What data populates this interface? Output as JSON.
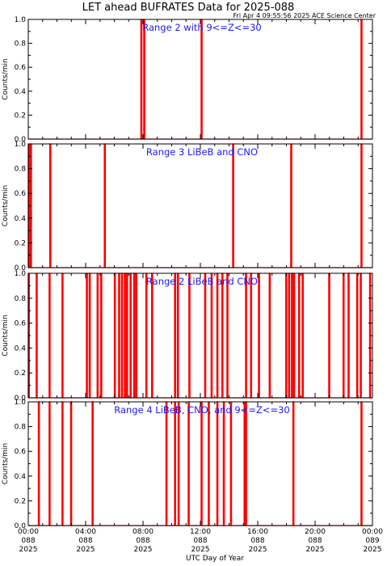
{
  "title": "LET ahead BUFRATES Data for 2025-088",
  "timestamp": "Fri Apr  4 09:55:56 2025 ACE Science Center",
  "xlabel": "UTC Day of Year",
  "x_ticks": [
    {
      "hh": "00:00",
      "doy": "088",
      "yr": "2025"
    },
    {
      "hh": "04:00",
      "doy": "088",
      "yr": "2025"
    },
    {
      "hh": "08:00",
      "doy": "088",
      "yr": "2025"
    },
    {
      "hh": "12:00",
      "doy": "088",
      "yr": "2025"
    },
    {
      "hh": "16:00",
      "doy": "088",
      "yr": "2025"
    },
    {
      "hh": "20:00",
      "doy": "088",
      "yr": "2025"
    },
    {
      "hh": "00:00",
      "doy": "089",
      "yr": "2025"
    }
  ],
  "y_ticks": [
    "0.0",
    "0.2",
    "0.4",
    "0.6",
    "0.8",
    "1.0"
  ],
  "colors": {
    "series": "#ff0000",
    "label": "#1a1aff",
    "axis": "#000000"
  },
  "chart_data": [
    {
      "type": "line",
      "title": "Range 2 with 9<=Z<=30",
      "ylabel": "Counts/min",
      "ylim": [
        0,
        1
      ],
      "xlim_hours": [
        0,
        24
      ],
      "spikes_hours": [
        7.85,
        8.05,
        12.05,
        23.2
      ]
    },
    {
      "type": "line",
      "title": "Range 3 LiBeB and CNO",
      "ylabel": "Counts/min",
      "ylim": [
        0,
        1
      ],
      "xlim_hours": [
        0,
        24
      ],
      "spikes_hours": [
        0.0,
        0.15,
        1.5,
        5.3,
        14.25,
        18.3,
        23.2
      ]
    },
    {
      "type": "line",
      "title": "Range 2 LiBeB and CNO",
      "ylabel": "Counts/min",
      "ylim": [
        0,
        1
      ],
      "xlim_hours": [
        0,
        24
      ],
      "spikes_hours": [
        0.0,
        0.55,
        1.45,
        2.35,
        4.05,
        4.25,
        4.8,
        5.05,
        6.0,
        6.3,
        6.5,
        6.7,
        6.85,
        7.1,
        7.35,
        7.5,
        8.2,
        8.6,
        10.2,
        10.4,
        11.2,
        12.3,
        12.75,
        13.15,
        13.5,
        13.85,
        15.15,
        15.5,
        16.05,
        16.8,
        17.95,
        18.15,
        18.35,
        18.5,
        18.85,
        19.1,
        20.95,
        21.95,
        22.3,
        22.9,
        23.15,
        23.8
      ]
    },
    {
      "type": "line",
      "title": "Range 4 LiBeB, CNO, and 9<=Z<=30",
      "ylabel": "Counts/min",
      "ylim": [
        0,
        1
      ],
      "xlim_hours": [
        0,
        24
      ],
      "spikes_hours": [
        0.7,
        1.45,
        2.35,
        2.95,
        4.45,
        9.6,
        10.2,
        10.45,
        11.15,
        12.05,
        12.55,
        13.15,
        13.6,
        14.1,
        15.05,
        15.15,
        18.45,
        23.2
      ]
    }
  ]
}
